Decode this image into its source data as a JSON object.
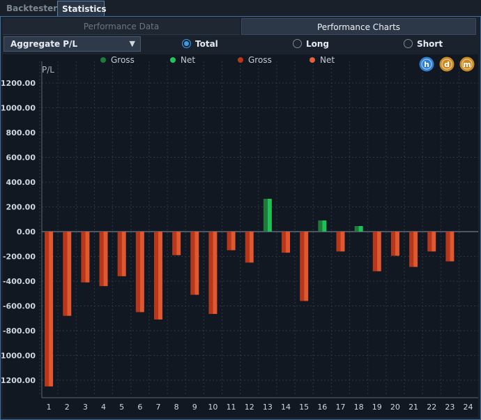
{
  "tabs": [
    {
      "label": "Backtester",
      "active": false
    },
    {
      "label": "Statistics",
      "active": true
    }
  ],
  "subtabs": [
    {
      "label": "Performance Data",
      "active": false
    },
    {
      "label": "Performance Charts",
      "active": true
    }
  ],
  "controls": {
    "dropdown_value": "Aggregate P/L",
    "radios": [
      {
        "label": "Total",
        "selected": true
      },
      {
        "label": "Long",
        "selected": false
      },
      {
        "label": "Short",
        "selected": false
      }
    ]
  },
  "chart_buttons": [
    {
      "letter": "h",
      "color": "#2f7fd0"
    },
    {
      "letter": "d",
      "color": "#c98a24"
    },
    {
      "letter": "m",
      "color": "#c98a24"
    }
  ],
  "chart_data": {
    "type": "bar",
    "title": "",
    "xlabel": "",
    "ylabel": "P/L",
    "ylim": [
      -1300,
      1300
    ],
    "yticks": [
      1200,
      1000,
      800,
      600,
      400,
      200,
      0,
      -200,
      -400,
      -600,
      -800,
      -1000,
      -1200
    ],
    "ytick_labels": [
      "1200.00",
      "1000.00",
      "800.00",
      "600.00",
      "400.00",
      "200.00",
      "0.00",
      "-200.00",
      "-400.00",
      "-600.00",
      "-800.00",
      "-1000.00",
      "-1200.00"
    ],
    "categories": [
      "1",
      "2",
      "3",
      "4",
      "5",
      "6",
      "7",
      "8",
      "9",
      "10",
      "11",
      "12",
      "13",
      "14",
      "15",
      "16",
      "17",
      "18",
      "19",
      "20",
      "21",
      "22",
      "23",
      "24"
    ],
    "grid": true,
    "legend": [
      {
        "label": "Gross",
        "color": "#1f7a3a"
      },
      {
        "label": "Net",
        "color": "#22c35e"
      },
      {
        "label": "Gross",
        "color": "#b8361a"
      },
      {
        "label": "Net",
        "color": "#e2603a"
      }
    ],
    "colors": {
      "profit_gross": "#1f7a3a",
      "profit_net": "#1ec05a",
      "loss_gross": "#b8361a",
      "loss_net": "#e0582f"
    },
    "series": [
      {
        "name": "Gross",
        "values": [
          -1250,
          -680,
          -410,
          -440,
          -360,
          -650,
          -710,
          -190,
          -510,
          -665,
          -150,
          -250,
          265,
          -170,
          -560,
          90,
          -160,
          45,
          -320,
          -195,
          -285,
          -160,
          -240,
          0
        ]
      },
      {
        "name": "Net",
        "values": [
          -1250,
          -680,
          -410,
          -440,
          -360,
          -650,
          -710,
          -190,
          -510,
          -665,
          -150,
          -250,
          265,
          -170,
          -560,
          90,
          -160,
          45,
          -320,
          -195,
          -285,
          -160,
          -240,
          0
        ]
      }
    ]
  }
}
